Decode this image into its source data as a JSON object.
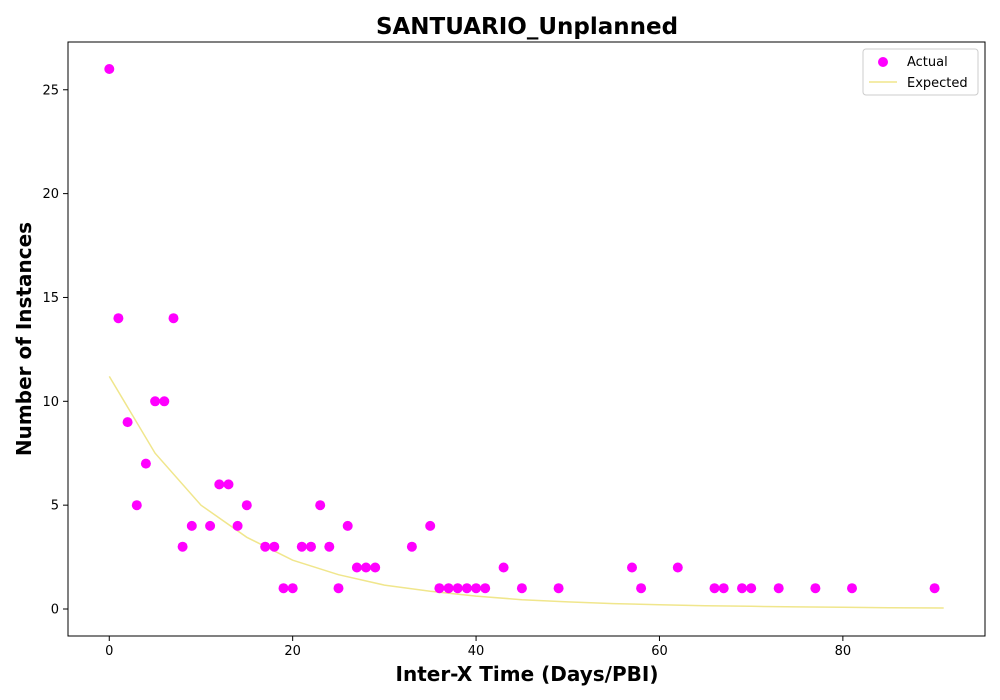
{
  "chart_data": {
    "type": "scatter",
    "title": "SANTUARIO_Unplanned",
    "xlabel": "Inter-X Time (Days/PBI)",
    "ylabel": "Number of Instances",
    "xlim": [
      -4.5,
      95.5
    ],
    "ylim": [
      -1.3,
      27.3
    ],
    "xticks": [
      0,
      20,
      40,
      60,
      80
    ],
    "yticks": [
      0,
      5,
      10,
      15,
      20,
      25
    ],
    "grid": false,
    "legend_position": "top-right",
    "series": [
      {
        "name": "Actual",
        "kind": "scatter",
        "color": "#ff00ff",
        "points": [
          [
            0,
            26
          ],
          [
            1,
            14
          ],
          [
            2,
            9
          ],
          [
            3,
            5
          ],
          [
            4,
            7
          ],
          [
            5,
            10
          ],
          [
            6,
            10
          ],
          [
            7,
            14
          ],
          [
            8,
            3
          ],
          [
            9,
            4
          ],
          [
            11,
            4
          ],
          [
            12,
            6
          ],
          [
            13,
            6
          ],
          [
            14,
            4
          ],
          [
            15,
            5
          ],
          [
            17,
            3
          ],
          [
            18,
            3
          ],
          [
            19,
            1
          ],
          [
            20,
            1
          ],
          [
            21,
            3
          ],
          [
            22,
            3
          ],
          [
            23,
            5
          ],
          [
            24,
            3
          ],
          [
            25,
            1
          ],
          [
            26,
            4
          ],
          [
            27,
            2
          ],
          [
            28,
            2
          ],
          [
            29,
            2
          ],
          [
            33,
            3
          ],
          [
            35,
            4
          ],
          [
            36,
            1
          ],
          [
            37,
            1
          ],
          [
            38,
            1
          ],
          [
            39,
            1
          ],
          [
            40,
            1
          ],
          [
            41,
            1
          ],
          [
            43,
            2
          ],
          [
            45,
            1
          ],
          [
            49,
            1
          ],
          [
            57,
            2
          ],
          [
            58,
            1
          ],
          [
            62,
            2
          ],
          [
            66,
            1
          ],
          [
            67,
            1
          ],
          [
            69,
            1
          ],
          [
            70,
            1
          ],
          [
            73,
            1
          ],
          [
            77,
            1
          ],
          [
            81,
            1
          ],
          [
            90,
            1
          ]
        ]
      },
      {
        "name": "Expected",
        "kind": "line",
        "color": "#f0e68c",
        "points": [
          [
            0,
            11.2
          ],
          [
            5,
            7.5
          ],
          [
            10,
            5.0
          ],
          [
            15,
            3.45
          ],
          [
            20,
            2.35
          ],
          [
            25,
            1.65
          ],
          [
            30,
            1.15
          ],
          [
            35,
            0.85
          ],
          [
            40,
            0.62
          ],
          [
            45,
            0.45
          ],
          [
            50,
            0.34
          ],
          [
            55,
            0.26
          ],
          [
            60,
            0.2
          ],
          [
            65,
            0.16
          ],
          [
            70,
            0.13
          ],
          [
            75,
            0.1
          ],
          [
            80,
            0.08
          ],
          [
            85,
            0.06
          ],
          [
            91,
            0.05
          ]
        ]
      }
    ]
  }
}
